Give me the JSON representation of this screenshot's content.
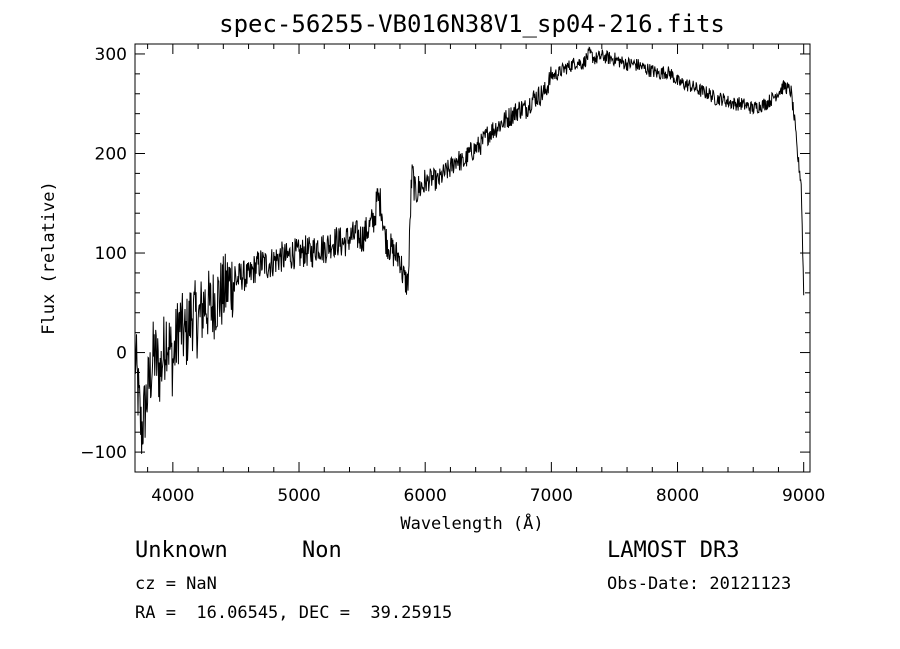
{
  "chart_data": {
    "type": "line",
    "title": "spec-56255-VB016N38V1_sp04-216.fits",
    "xlabel": "Wavelength (Å)",
    "ylabel": "Flux (relative)",
    "xlim": [
      3700,
      9050
    ],
    "ylim": [
      -120,
      310
    ],
    "xticks": [
      4000,
      5000,
      6000,
      7000,
      8000,
      9000
    ],
    "yticks": [
      -100,
      0,
      100,
      200,
      300
    ],
    "grid": false,
    "series": [
      {
        "x": [
          3700,
          3750,
          3800,
          3850,
          3900,
          3950,
          4000,
          4050,
          4100,
          4150,
          4200,
          4250,
          4300,
          4350,
          4400,
          4450,
          4500,
          4550,
          4600,
          4650,
          4700,
          4750,
          4800,
          4850,
          4900,
          4950,
          5000,
          5050,
          5100,
          5150,
          5200,
          5250,
          5300,
          5350,
          5400,
          5450,
          5500,
          5550,
          5600,
          5620,
          5650,
          5680,
          5700,
          5750,
          5800,
          5820,
          5840,
          5860,
          5870,
          5880,
          5890,
          5900,
          5920,
          5950,
          6000,
          6050,
          6100,
          6150,
          6200,
          6250,
          6300,
          6350,
          6400,
          6450,
          6500,
          6550,
          6600,
          6650,
          6700,
          6750,
          6800,
          6850,
          6900,
          6950,
          7000,
          7050,
          7100,
          7150,
          7200,
          7250,
          7300,
          7350,
          7400,
          7450,
          7500,
          7550,
          7600,
          7650,
          7700,
          7750,
          7800,
          7850,
          7900,
          7950,
          8000,
          8050,
          8100,
          8150,
          8200,
          8250,
          8300,
          8350,
          8400,
          8450,
          8500,
          8550,
          8600,
          8650,
          8700,
          8750,
          8800,
          8850,
          8900,
          8930,
          8950,
          8980,
          9000
        ],
        "y": [
          0,
          -80,
          -40,
          0,
          -20,
          20,
          -10,
          30,
          15,
          40,
          30,
          50,
          45,
          55,
          60,
          70,
          72,
          78,
          75,
          85,
          90,
          88,
          92,
          96,
          95,
          100,
          98,
          102,
          100,
          108,
          104,
          110,
          112,
          110,
          115,
          118,
          115,
          125,
          135,
          155,
          150,
          118,
          110,
          100,
          95,
          80,
          72,
          70,
          80,
          130,
          170,
          180,
          160,
          165,
          170,
          175,
          172,
          180,
          185,
          195,
          190,
          200,
          205,
          210,
          220,
          225,
          230,
          235,
          240,
          245,
          245,
          255,
          258,
          262,
          278,
          280,
          285,
          288,
          292,
          290,
          300,
          295,
          298,
          296,
          295,
          292,
          290,
          290,
          288,
          285,
          283,
          280,
          282,
          280,
          272,
          270,
          268,
          265,
          262,
          260,
          255,
          255,
          252,
          250,
          250,
          248,
          245,
          248,
          250,
          255,
          262,
          268,
          262,
          230,
          200,
          170,
          60
        ]
      }
    ]
  },
  "info": {
    "class": "Unknown",
    "subclass": "Non",
    "cz": "cz = NaN",
    "radec": "RA =  16.06545, DEC =  39.25915",
    "survey": "LAMOST DR3",
    "obsdate": "Obs-Date: 20121123"
  }
}
